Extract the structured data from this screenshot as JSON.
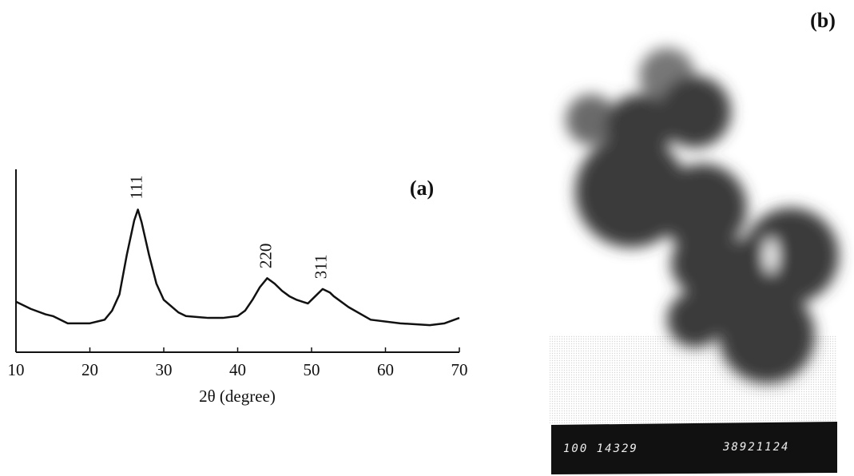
{
  "chart_data": {
    "type": "line",
    "label": "(a)",
    "xlabel": "2θ (degree)",
    "x": [
      10,
      12,
      14,
      15,
      17,
      20,
      22,
      23,
      24,
      25,
      26,
      26.5,
      27,
      28,
      29,
      30,
      32,
      33,
      36,
      38,
      40,
      41,
      42,
      43,
      44,
      45,
      46,
      47,
      48,
      49.5,
      50.5,
      51.5,
      52.5,
      53,
      55,
      58,
      62,
      66,
      68,
      70
    ],
    "series": [
      {
        "color": "#111111",
        "values": [
          28,
          24,
          21,
          20,
          16,
          16,
          18,
          23,
          32,
          54,
          73,
          79,
          72,
          54,
          38,
          29,
          22,
          20,
          19,
          19,
          20,
          23,
          29,
          36,
          41,
          38,
          34,
          31,
          29,
          27,
          31,
          35,
          33,
          31,
          25,
          18,
          16,
          15,
          16,
          19
        ]
      }
    ],
    "xlim": [
      10,
      70
    ],
    "xticks": [
      10,
      20,
      30,
      40,
      50,
      60,
      70
    ],
    "ylim": [
      0,
      100
    ],
    "annotations": [
      {
        "text": "111",
        "x": 26.5
      },
      {
        "text": "220",
        "x": 44
      },
      {
        "text": "311",
        "x": 51.5
      }
    ]
  },
  "image": {
    "label": "(b)",
    "scale_bar_text": [
      "100 14329",
      "38921124"
    ]
  }
}
